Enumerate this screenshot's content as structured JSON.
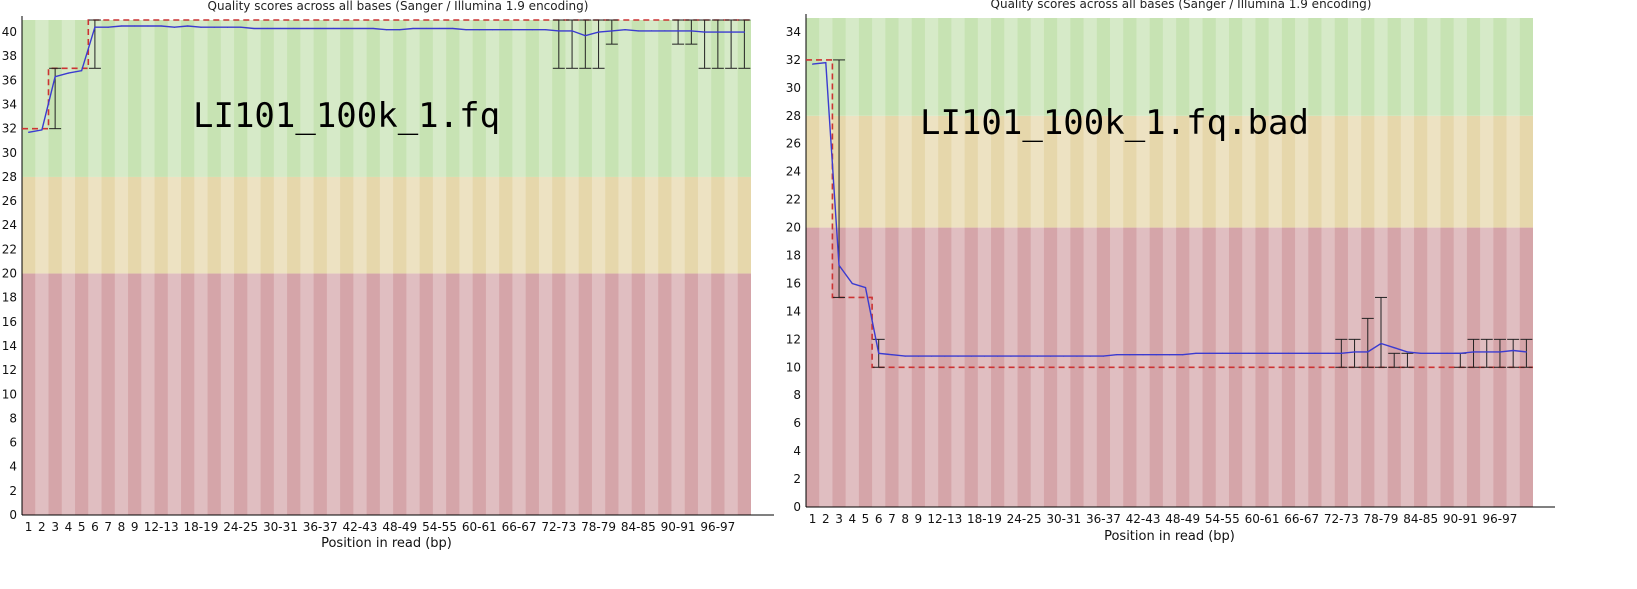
{
  "chart_data": [
    {
      "type": "boxplot-line",
      "title": "Quality scores across all bases (Sanger / Illumina 1.9 encoding)",
      "overlay_text": "LI101_100k_1.fq",
      "xlabel": "Position in read (bp)",
      "ylabel": "",
      "ylim": [
        0,
        41
      ],
      "y_ticks": [
        0,
        2,
        4,
        6,
        8,
        10,
        12,
        14,
        16,
        18,
        20,
        22,
        24,
        26,
        28,
        30,
        32,
        34,
        36,
        38,
        40
      ],
      "zones": [
        {
          "name": "poor",
          "from": 0,
          "to": 20,
          "color": "#d5a5a9"
        },
        {
          "name": "reasonable",
          "from": 20,
          "to": 28,
          "color": "#e6d7ab"
        },
        {
          "name": "good",
          "from": 28,
          "to": 41,
          "color": "#c7e3b3"
        }
      ],
      "categories": [
        "1",
        "2",
        "3",
        "4",
        "5",
        "6",
        "7",
        "8",
        "9",
        "10-11",
        "12-13",
        "14-15",
        "16-17",
        "18-19",
        "20-21",
        "22-23",
        "24-25",
        "26-27",
        "28-29",
        "30-31",
        "32-33",
        "34-35",
        "36-37",
        "38-39",
        "40-41",
        "42-43",
        "44-45",
        "46-47",
        "48-49",
        "50-51",
        "52-53",
        "54-55",
        "56-57",
        "58-59",
        "60-61",
        "62-63",
        "64-65",
        "66-67",
        "68-69",
        "70-71",
        "72-73",
        "74-75",
        "76-77",
        "78-79",
        "80-81",
        "82-83",
        "84-85",
        "86-87",
        "88-89",
        "90-91",
        "92-93",
        "94-95",
        "96-97",
        "98-99",
        "100"
      ],
      "x_tick_labels": [
        "1",
        "2",
        "3",
        "4",
        "5",
        "6",
        "7",
        "8",
        "9",
        "12-13",
        "18-19",
        "24-25",
        "30-31",
        "36-37",
        "42-43",
        "48-49",
        "54-55",
        "60-61",
        "66-67",
        "72-73",
        "78-79",
        "84-85",
        "90-91",
        "96-97"
      ],
      "x_tick_indices": [
        0,
        1,
        2,
        3,
        4,
        5,
        6,
        7,
        8,
        10,
        13,
        16,
        19,
        22,
        25,
        28,
        31,
        34,
        37,
        40,
        43,
        46,
        49,
        52
      ],
      "mean": [
        31.7,
        31.9,
        36.3,
        36.6,
        36.8,
        40.4,
        40.4,
        40.5,
        40.5,
        40.5,
        40.5,
        40.4,
        40.5,
        40.4,
        40.4,
        40.4,
        40.4,
        40.3,
        40.3,
        40.3,
        40.3,
        40.3,
        40.3,
        40.3,
        40.3,
        40.3,
        40.3,
        40.2,
        40.2,
        40.3,
        40.3,
        40.3,
        40.3,
        40.2,
        40.2,
        40.2,
        40.2,
        40.2,
        40.2,
        40.2,
        40.1,
        40.1,
        39.7,
        40.0,
        40.1,
        40.2,
        40.1,
        40.1,
        40.1,
        40.1,
        40.1,
        40.0,
        40.0,
        40.0,
        40.0
      ],
      "whisker_low": [
        null,
        null,
        32,
        null,
        null,
        37,
        null,
        null,
        null,
        null,
        null,
        null,
        null,
        null,
        null,
        null,
        null,
        null,
        null,
        null,
        null,
        null,
        null,
        null,
        null,
        null,
        null,
        null,
        null,
        null,
        null,
        null,
        null,
        null,
        null,
        null,
        null,
        null,
        null,
        null,
        37,
        37,
        37,
        37,
        39,
        null,
        null,
        null,
        null,
        39,
        39,
        37,
        37,
        37,
        37
      ],
      "whisker_high": [
        null,
        null,
        37,
        null,
        null,
        41,
        null,
        null,
        null,
        null,
        null,
        null,
        null,
        null,
        null,
        null,
        null,
        null,
        null,
        null,
        null,
        null,
        null,
        null,
        null,
        null,
        null,
        null,
        null,
        null,
        null,
        null,
        null,
        null,
        null,
        null,
        null,
        null,
        null,
        null,
        41,
        41,
        41,
        41,
        41,
        null,
        null,
        null,
        null,
        41,
        41,
        41,
        41,
        41,
        41
      ],
      "lower_quartile": [
        32,
        32,
        37,
        37,
        37,
        41,
        41,
        41,
        41,
        41,
        41,
        41,
        41,
        41,
        41,
        41,
        41,
        41,
        41,
        41,
        41,
        41,
        41,
        41,
        41,
        41,
        41,
        41,
        41,
        41,
        41,
        41,
        41,
        41,
        41,
        41,
        41,
        41,
        41,
        41,
        41,
        41,
        41,
        41,
        41,
        41,
        41,
        41,
        41,
        41,
        41,
        41,
        41,
        41,
        41
      ]
    },
    {
      "type": "boxplot-line",
      "title": "Quality scores across all bases (Sanger / Illumina 1.9 encoding)",
      "overlay_text": "LI101_100k_1.fq.bad",
      "xlabel": "Position in read (bp)",
      "ylabel": "",
      "ylim": [
        0,
        35
      ],
      "y_ticks": [
        0,
        2,
        4,
        6,
        8,
        10,
        12,
        14,
        16,
        18,
        20,
        22,
        24,
        26,
        28,
        30,
        32,
        34
      ],
      "zones": [
        {
          "name": "poor",
          "from": 0,
          "to": 20,
          "color": "#d5a5a9"
        },
        {
          "name": "reasonable",
          "from": 20,
          "to": 28,
          "color": "#e6d7ab"
        },
        {
          "name": "good",
          "from": 28,
          "to": 35,
          "color": "#c7e3b3"
        }
      ],
      "categories": [
        "1",
        "2",
        "3",
        "4",
        "5",
        "6",
        "7",
        "8",
        "9",
        "10-11",
        "12-13",
        "14-15",
        "16-17",
        "18-19",
        "20-21",
        "22-23",
        "24-25",
        "26-27",
        "28-29",
        "30-31",
        "32-33",
        "34-35",
        "36-37",
        "38-39",
        "40-41",
        "42-43",
        "44-45",
        "46-47",
        "48-49",
        "50-51",
        "52-53",
        "54-55",
        "56-57",
        "58-59",
        "60-61",
        "62-63",
        "64-65",
        "66-67",
        "68-69",
        "70-71",
        "72-73",
        "74-75",
        "76-77",
        "78-79",
        "80-81",
        "82-83",
        "84-85",
        "86-87",
        "88-89",
        "90-91",
        "92-93",
        "94-95",
        "96-97",
        "98-99",
        "100"
      ],
      "x_tick_labels": [
        "1",
        "2",
        "3",
        "4",
        "5",
        "6",
        "7",
        "8",
        "9",
        "12-13",
        "18-19",
        "24-25",
        "30-31",
        "36-37",
        "42-43",
        "48-49",
        "54-55",
        "60-61",
        "66-67",
        "72-73",
        "78-79",
        "84-85",
        "90-91",
        "96-97"
      ],
      "x_tick_indices": [
        0,
        1,
        2,
        3,
        4,
        5,
        6,
        7,
        8,
        10,
        13,
        16,
        19,
        22,
        25,
        28,
        31,
        34,
        37,
        40,
        43,
        46,
        49,
        52
      ],
      "mean": [
        31.7,
        31.8,
        17.3,
        16.0,
        15.7,
        11.0,
        10.9,
        10.8,
        10.8,
        10.8,
        10.8,
        10.8,
        10.8,
        10.8,
        10.8,
        10.8,
        10.8,
        10.8,
        10.8,
        10.8,
        10.8,
        10.8,
        10.8,
        10.9,
        10.9,
        10.9,
        10.9,
        10.9,
        10.9,
        11.0,
        11.0,
        11.0,
        11.0,
        11.0,
        11.0,
        11.0,
        11.0,
        11.0,
        11.0,
        11.0,
        11.0,
        11.1,
        11.1,
        11.7,
        11.4,
        11.1,
        11.0,
        11.0,
        11.0,
        11.0,
        11.1,
        11.1,
        11.1,
        11.2,
        11.1
      ],
      "whisker_low": [
        null,
        null,
        15,
        null,
        null,
        10,
        null,
        null,
        null,
        null,
        null,
        null,
        null,
        null,
        null,
        null,
        null,
        null,
        null,
        null,
        null,
        null,
        null,
        null,
        null,
        null,
        null,
        null,
        null,
        null,
        null,
        null,
        null,
        null,
        null,
        null,
        null,
        null,
        null,
        null,
        10,
        10,
        10,
        10,
        10,
        10,
        null,
        null,
        null,
        10,
        10,
        10,
        10,
        10,
        10
      ],
      "whisker_high": [
        null,
        null,
        32,
        null,
        null,
        12,
        null,
        null,
        null,
        null,
        null,
        null,
        null,
        null,
        null,
        null,
        null,
        null,
        null,
        null,
        null,
        null,
        null,
        null,
        null,
        null,
        null,
        null,
        null,
        null,
        null,
        null,
        null,
        null,
        null,
        null,
        null,
        null,
        null,
        null,
        12,
        12,
        13.5,
        15,
        11,
        11,
        null,
        null,
        null,
        11,
        12,
        12,
        12,
        12,
        12
      ],
      "lower_quartile": [
        32,
        32,
        15,
        15,
        15,
        10,
        10,
        10,
        10,
        10,
        10,
        10,
        10,
        10,
        10,
        10,
        10,
        10,
        10,
        10,
        10,
        10,
        10,
        10,
        10,
        10,
        10,
        10,
        10,
        10,
        10,
        10,
        10,
        10,
        10,
        10,
        10,
        10,
        10,
        10,
        10,
        10,
        10,
        10,
        10,
        10,
        10,
        10,
        10,
        10,
        10,
        10,
        10,
        10,
        10
      ]
    }
  ]
}
